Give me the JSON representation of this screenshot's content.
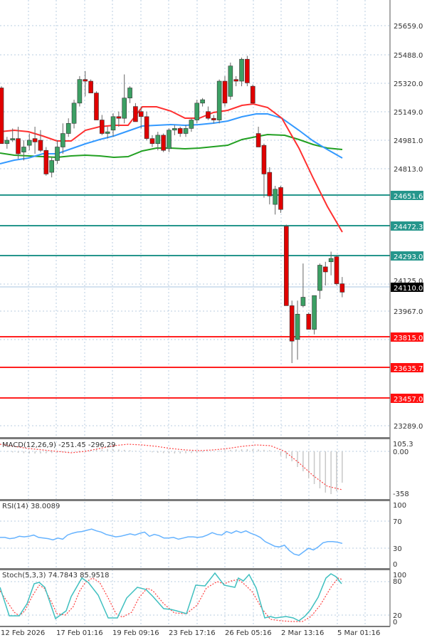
{
  "chart_data": [
    {
      "type": "candlestick",
      "title": "",
      "price_axis": {
        "ticks": [
          25659.0,
          25488.0,
          25320.0,
          25149.0,
          24981.0,
          24813.0,
          23967.0,
          23289.0
        ],
        "range": [
          23200,
          25800
        ]
      },
      "current_price": {
        "value": "24110.0",
        "hidden_tick": "24125.0",
        "color": "#000000"
      },
      "resistance_levels": [
        {
          "value": "24651.6",
          "color": "#26968C"
        },
        {
          "value": "24472.3",
          "color": "#26968C"
        },
        {
          "value": "24293.0",
          "color": "#26968C"
        }
      ],
      "support_levels": [
        {
          "value": "23815.0",
          "color": "#FF0000"
        },
        {
          "value": "23635.7",
          "color": "#FF0000"
        },
        {
          "value": "23457.0",
          "color": "#FF0000"
        }
      ],
      "moving_averages": [
        {
          "name": "MA fast",
          "color": "#FF3030"
        },
        {
          "name": "MA medium",
          "color": "#3399FF"
        },
        {
          "name": "MA slow",
          "color": "#22A022"
        }
      ],
      "candles": [
        [
          0,
          25290,
          25300,
          24960,
          24960
        ],
        [
          1,
          24960,
          25000,
          24930,
          24980
        ],
        [
          2,
          24990,
          25050,
          24970,
          24990
        ],
        [
          3,
          24990,
          25060,
          24870,
          24900
        ],
        [
          4,
          24910,
          24980,
          24860,
          24940
        ],
        [
          5,
          24950,
          25020,
          24920,
          24980
        ],
        [
          6,
          24990,
          25060,
          24900,
          24970
        ],
        [
          7,
          24980,
          25040,
          24910,
          24920
        ],
        [
          8,
          24920,
          24940,
          24770,
          24780
        ],
        [
          9,
          24790,
          24880,
          24760,
          24860
        ],
        [
          10,
          24860,
          24980,
          24840,
          24940
        ],
        [
          11,
          24940,
          25080,
          24900,
          25020
        ],
        [
          12,
          25020,
          25110,
          25000,
          25080
        ],
        [
          13,
          25080,
          25220,
          25050,
          25200
        ],
        [
          14,
          25200,
          25360,
          25180,
          25340
        ],
        [
          15,
          25340,
          25390,
          25240,
          25330
        ],
        [
          16,
          25330,
          25340,
          25270,
          25260
        ],
        [
          17,
          25260,
          25270,
          25130,
          25100
        ],
        [
          18,
          25100,
          25130,
          25010,
          25020
        ],
        [
          19,
          25020,
          25060,
          24990,
          25030
        ],
        [
          20,
          25040,
          25140,
          25000,
          25120
        ],
        [
          21,
          25120,
          25150,
          25060,
          25110
        ],
        [
          22,
          25110,
          25370,
          25080,
          25230
        ],
        [
          23,
          25230,
          25300,
          25200,
          25290
        ],
        [
          24,
          25180,
          25200,
          25100,
          25090
        ],
        [
          25,
          25150,
          25180,
          25050,
          25120
        ],
        [
          26,
          25120,
          25150,
          24980,
          24990
        ],
        [
          27,
          24990,
          25010,
          24940,
          24960
        ],
        [
          28,
          24960,
          25030,
          24920,
          25010
        ],
        [
          29,
          25010,
          25020,
          24910,
          24920
        ],
        [
          30,
          24930,
          25050,
          24910,
          25040
        ],
        [
          31,
          25040,
          25070,
          25010,
          25050
        ],
        [
          32,
          25050,
          25060,
          25000,
          25020
        ],
        [
          33,
          25020,
          25070,
          25000,
          25050
        ],
        [
          34,
          25050,
          25110,
          25030,
          25100
        ],
        [
          35,
          25100,
          25220,
          25080,
          25200
        ],
        [
          36,
          25200,
          25230,
          25180,
          25220
        ],
        [
          37,
          25150,
          25180,
          25100,
          25110
        ],
        [
          38,
          25110,
          25130,
          25080,
          25100
        ],
        [
          39,
          25100,
          25340,
          25080,
          25330
        ],
        [
          40,
          25330,
          25360,
          25180,
          25200
        ],
        [
          41,
          25240,
          25440,
          25220,
          25420
        ],
        [
          42,
          25340,
          25360,
          25300,
          25330
        ],
        [
          43,
          25330,
          25470,
          25300,
          25460
        ],
        [
          44,
          25460,
          25480,
          25300,
          25320
        ],
        [
          45,
          25300,
          25310,
          25200,
          25200
        ],
        [
          46,
          25020,
          25060,
          24940,
          24940
        ],
        [
          47,
          24950,
          24960,
          24640,
          24780
        ],
        [
          48,
          24790,
          24820,
          24600,
          24650
        ],
        [
          49,
          24600,
          24710,
          24540,
          24690
        ],
        [
          50,
          24700,
          24710,
          24550,
          24570
        ],
        [
          51,
          24470,
          24480,
          24000,
          24000
        ],
        [
          52,
          24000,
          24030,
          23660,
          23790
        ],
        [
          53,
          23800,
          24030,
          23680,
          23950
        ],
        [
          54,
          24000,
          24250,
          23990,
          24050
        ],
        [
          55,
          23950,
          23960,
          23860,
          23860
        ],
        [
          56,
          23860,
          24010,
          23830,
          24060
        ],
        [
          57,
          24090,
          24250,
          24040,
          24240
        ],
        [
          58,
          24230,
          24260,
          24120,
          24200
        ],
        [
          59,
          24260,
          24320,
          24180,
          24280
        ],
        [
          60,
          24290,
          24300,
          24120,
          24130
        ],
        [
          61,
          24130,
          24170,
          24050,
          24080
        ]
      ],
      "x_axis": {
        "tick_labels": [
          "12 Feb 2026",
          "17 Feb 01:16",
          "19 Feb 09:16",
          "23 Feb 17:16",
          "26 Feb 05:16",
          "2 Mar 13:16",
          "5 Mar 01:16"
        ]
      }
    },
    {
      "type": "histogram+line",
      "title": "MACD(12,26,9) -251.45 -296.29",
      "indicator": "MACD",
      "params": "12,26,9",
      "values": {
        "macd": -251.45,
        "signal": -296.29
      },
      "ylim": [
        -358,
        105.3
      ],
      "ticks": [
        "105.3",
        "0.00",
        "-358"
      ]
    },
    {
      "type": "line",
      "title": "RSI(14) 38.0089",
      "indicator": "RSI",
      "params": "14",
      "value": 38.0089,
      "ylim": [
        0,
        100
      ],
      "ticks": [
        "100",
        "70",
        "30",
        "0"
      ],
      "series": [
        48,
        48,
        46,
        47,
        50,
        49,
        50,
        52,
        48,
        47,
        46,
        44,
        47,
        45,
        52,
        55,
        57,
        58,
        60,
        62,
        59,
        57,
        53,
        51,
        49,
        50,
        52,
        54,
        52,
        55,
        57,
        50,
        53,
        51,
        47,
        47,
        48,
        45,
        47,
        49,
        49,
        48,
        49,
        52,
        56,
        53,
        52,
        58,
        55,
        59,
        56,
        59,
        55,
        52,
        48,
        41,
        37,
        33,
        32,
        35,
        26,
        20,
        18,
        24,
        30,
        27,
        32,
        39,
        41,
        41,
        40,
        38
      ],
      "color": "#66B3FF"
    },
    {
      "type": "line",
      "title": "Stoch(5,3,3) 74.7843 85.9518",
      "indicator": "Stochastic",
      "params": "5,3,3",
      "values": {
        "main": 74.7843,
        "signal": 85.9518
      },
      "ylim": [
        0,
        100
      ],
      "ticks": [
        "100",
        "80",
        "20",
        "0"
      ],
      "main_color": "#40C0C0",
      "signal_color": "#FF4040"
    }
  ],
  "price_labels": {
    "t0": "25659.0",
    "t1": "25488.0",
    "t2": "25320.0",
    "t3": "25149.0",
    "t4": "24981.0",
    "t5": "24813.0",
    "t6": "23967.0",
    "t7": "23289.0",
    "r1": "24651.6",
    "r2": "24472.3",
    "r3": "24293.0",
    "cur": "24110.0",
    "cur_hidden": "24125.0",
    "s1": "23815.0",
    "s2": "23635.7",
    "s3": "23457.0"
  },
  "indicators": {
    "macd_label": "MACD(12,26,9) -251.45 -296.29",
    "macd_top": "105.3",
    "macd_zero": "0.00",
    "macd_bottom": "-358",
    "rsi_label": "RSI(14) 38.0089",
    "rsi_100": "100",
    "rsi_70": "70",
    "rsi_30": "30",
    "rsi_0": "0",
    "stoch_label": "Stoch(5,3,3) 74.7843 85.9518",
    "stoch_100": "100",
    "stoch_80": "80",
    "stoch_20": "20",
    "stoch_0": "0"
  },
  "time_axis": {
    "l0": "12 Feb 2026",
    "l1": "17 Feb 01:16",
    "l2": "19 Feb 09:16",
    "l3": "23 Feb 17:16",
    "l4": "26 Feb 05:16",
    "l5": "2 Mar 13:16",
    "l6": "5 Mar 01:16"
  }
}
